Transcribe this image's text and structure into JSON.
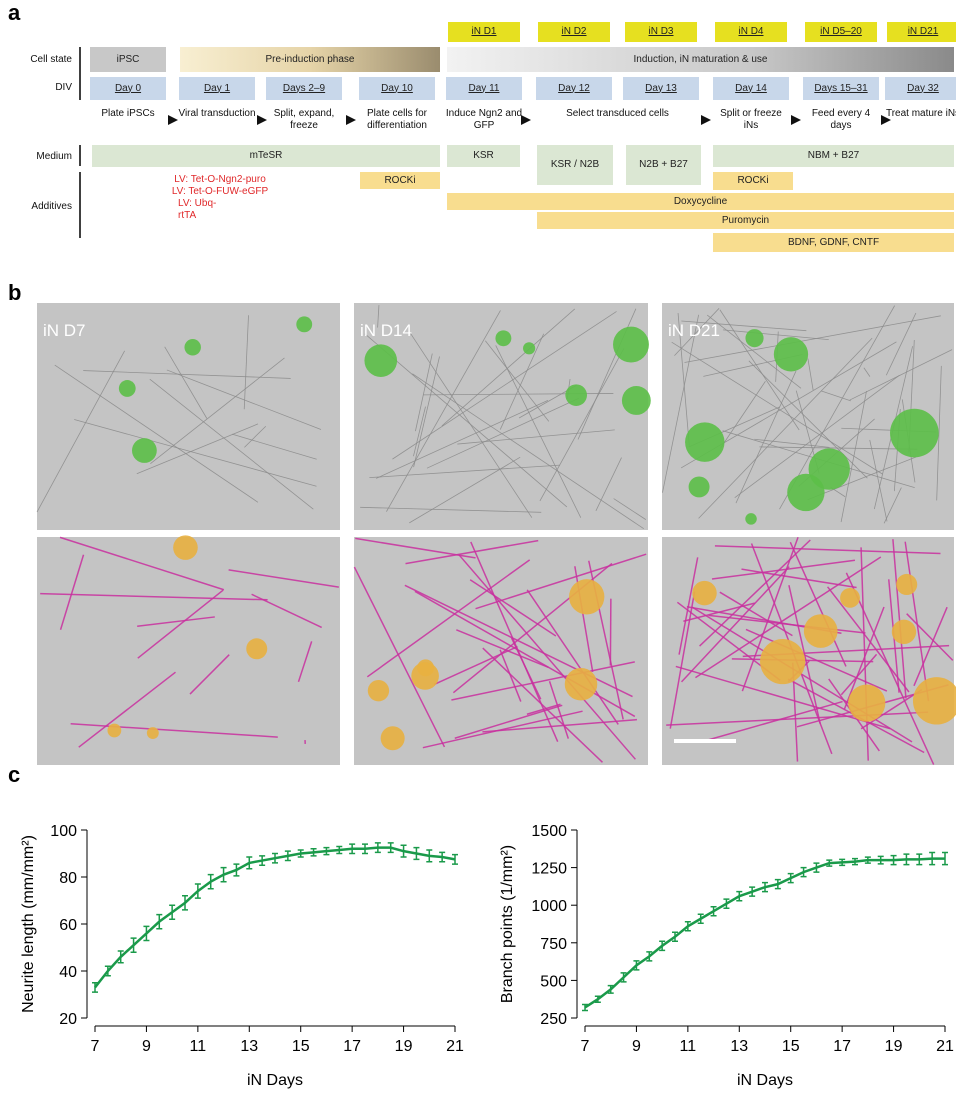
{
  "panel_a": {
    "label": "a",
    "stage_tags": [
      "iN D1",
      "iN D2",
      "iN D3",
      "iN D4",
      "iN D5–20",
      "iN D21"
    ],
    "row_labels": [
      "Cell state",
      "DIV",
      "Medium",
      "Additives"
    ],
    "cell_states": [
      "iPSC",
      "Pre-induction phase",
      "Induction, iN maturation & use"
    ],
    "days": [
      "Day 0",
      "Day 1",
      "Days 2–9",
      "Day 10",
      "Day 11",
      "Day 12",
      "Day 13",
      "Day 14",
      "Days 15–31",
      "Day 32"
    ],
    "steps": [
      "Plate iPSCs",
      "Viral transduction",
      "Split, expand, freeze",
      "Plate cells for differentiation",
      "Induce Ngn2 and GFP",
      "Select transduced cells",
      "Split or freeze iNs",
      "Feed every 4 days",
      "Treat mature iNs"
    ],
    "media": [
      "mTeSR",
      "KSR",
      "KSR / N2B",
      "N2B + B27",
      "NBM + B27"
    ],
    "viruses": [
      "LV: Tet-O-Ngn2-puro",
      "LV: Tet-O-FUW-eGFP",
      "LV: Ubq-rtTA"
    ],
    "additives": [
      "ROCKi",
      "ROCKi",
      "Doxycycline",
      "Puromycin",
      "BDNF, GDNF, CNTF"
    ]
  },
  "panel_b": {
    "label": "b",
    "images": [
      "iN D7",
      "iN D14",
      "iN D21"
    ]
  },
  "panel_c_label": "c",
  "chart_data": [
    {
      "type": "line",
      "xlabel": "iN Days",
      "ylabel": "Neurite length (mm/mm²)",
      "x": [
        7,
        7.5,
        8,
        8.5,
        9,
        9.5,
        10,
        10.5,
        11,
        11.5,
        12,
        12.5,
        13,
        13.5,
        14,
        14.5,
        15,
        15.5,
        16,
        16.5,
        17,
        17.5,
        18,
        18.5,
        19,
        19.5,
        20,
        20.5,
        21
      ],
      "values": [
        33,
        40,
        46,
        51,
        56,
        61,
        65,
        69,
        74,
        78,
        81,
        83,
        86,
        87,
        88,
        89,
        90,
        90.5,
        91,
        91.5,
        92,
        92,
        92.5,
        92.5,
        91,
        90,
        89,
        88.5,
        87.5
      ],
      "errors": [
        2,
        2,
        2.5,
        3,
        3,
        3,
        3,
        3,
        3,
        3,
        3,
        2.5,
        2.5,
        2,
        2,
        2,
        1.5,
        1.5,
        1.5,
        1.5,
        2,
        2,
        2,
        2,
        2.5,
        2.5,
        2.5,
        2,
        2
      ],
      "color": "#1a9a4a",
      "xlim": [
        7,
        21
      ],
      "xticks": [
        7,
        9,
        11,
        13,
        15,
        17,
        19,
        21
      ],
      "ylim": [
        20,
        100
      ],
      "yticks": [
        20,
        40,
        60,
        80,
        100
      ]
    },
    {
      "type": "line",
      "xlabel": "iN Days",
      "ylabel": "Branch points (1/mm²)",
      "x": [
        7,
        7.5,
        8,
        8.5,
        9,
        9.5,
        10,
        10.5,
        11,
        11.5,
        12,
        12.5,
        13,
        13.5,
        14,
        14.5,
        15,
        15.5,
        16,
        16.5,
        17,
        17.5,
        18,
        18.5,
        19,
        19.5,
        20,
        20.5,
        21
      ],
      "values": [
        320,
        375,
        440,
        520,
        600,
        660,
        730,
        790,
        860,
        910,
        960,
        1010,
        1060,
        1090,
        1120,
        1140,
        1180,
        1220,
        1250,
        1280,
        1285,
        1290,
        1300,
        1300,
        1300,
        1305,
        1305,
        1310,
        1310
      ],
      "errors": [
        20,
        20,
        25,
        30,
        30,
        30,
        30,
        30,
        30,
        30,
        30,
        30,
        30,
        30,
        30,
        30,
        30,
        30,
        30,
        20,
        20,
        20,
        20,
        25,
        30,
        35,
        35,
        40,
        40
      ],
      "color": "#1a9a4a",
      "xlim": [
        7,
        21
      ],
      "xticks": [
        7,
        9,
        11,
        13,
        15,
        17,
        19,
        21
      ],
      "ylim": [
        250,
        1500
      ],
      "yticks": [
        250,
        500,
        750,
        1000,
        1250,
        1500
      ]
    }
  ]
}
